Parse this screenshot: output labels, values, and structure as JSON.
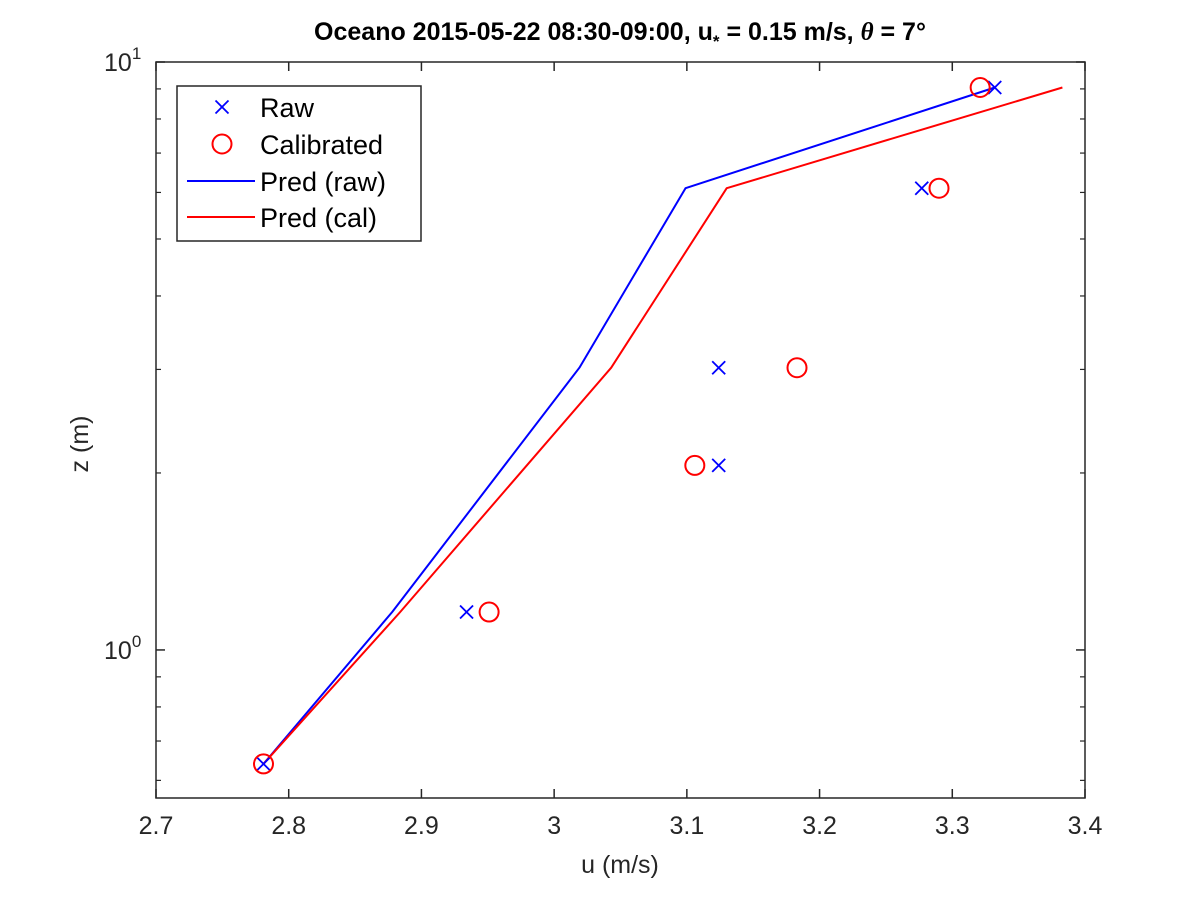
{
  "chart_data": {
    "type": "scatter",
    "title": {
      "prefix": "Oceano 2015-05-22 08:30-09:00, u",
      "sub": "*",
      "mid": " = 0.15 m/s, ",
      "theta": "θ",
      "suffix": " = 7°"
    },
    "xlabel": "u (m/s)",
    "ylabel": "z (m)",
    "xlim": [
      2.7,
      3.4
    ],
    "ylim": [
      0.56,
      10
    ],
    "yscale": "log",
    "xticks": [
      2.7,
      2.8,
      2.9,
      3.0,
      3.1,
      3.2,
      3.3,
      3.4
    ],
    "xtick_labels": [
      "2.7",
      "2.8",
      "2.9",
      "3",
      "3.1",
      "3.2",
      "3.3",
      "3.4"
    ],
    "ytick_labels": [
      {
        "value": 1,
        "base": "10",
        "exp": "0"
      },
      {
        "value": 10,
        "base": "10",
        "exp": "1"
      }
    ],
    "grid": false,
    "legend_position": "top-left",
    "series": [
      {
        "name": "Raw",
        "kind": "marker",
        "marker": "x",
        "color": "#0000ff",
        "points": [
          {
            "x": 2.781,
            "z": 0.64
          },
          {
            "x": 2.934,
            "z": 1.16
          },
          {
            "x": 3.124,
            "z": 2.06
          },
          {
            "x": 3.124,
            "z": 3.02
          },
          {
            "x": 3.277,
            "z": 6.1
          },
          {
            "x": 3.332,
            "z": 9.05
          }
        ]
      },
      {
        "name": "Calibrated",
        "kind": "marker",
        "marker": "o",
        "color": "#ff0000",
        "points": [
          {
            "x": 2.781,
            "z": 0.64
          },
          {
            "x": 2.951,
            "z": 1.16
          },
          {
            "x": 3.106,
            "z": 2.06
          },
          {
            "x": 3.183,
            "z": 3.02
          },
          {
            "x": 3.29,
            "z": 6.1
          },
          {
            "x": 3.321,
            "z": 9.05
          }
        ]
      },
      {
        "name": "Pred (raw)",
        "kind": "line",
        "color": "#0000ff",
        "points": [
          {
            "x": 2.781,
            "z": 0.64
          },
          {
            "x": 2.878,
            "z": 1.16
          },
          {
            "x": 3.019,
            "z": 3.02
          },
          {
            "x": 3.099,
            "z": 6.1
          },
          {
            "x": 3.332,
            "z": 9.05
          }
        ]
      },
      {
        "name": "Pred (cal)",
        "kind": "line",
        "color": "#ff0000",
        "points": [
          {
            "x": 2.781,
            "z": 0.64
          },
          {
            "x": 2.884,
            "z": 1.16
          },
          {
            "x": 3.043,
            "z": 3.02
          },
          {
            "x": 3.13,
            "z": 6.1
          },
          {
            "x": 3.383,
            "z": 9.05
          }
        ]
      }
    ]
  }
}
